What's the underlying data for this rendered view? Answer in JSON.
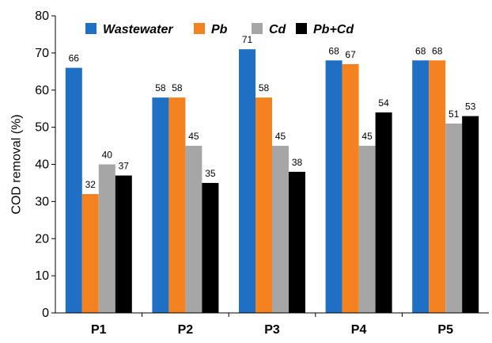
{
  "chart_data": {
    "type": "bar",
    "categories": [
      "P1",
      "P2",
      "P3",
      "P4",
      "P5"
    ],
    "series": [
      {
        "name": "Wastewater",
        "color": "#1f6fc5",
        "values": [
          66,
          58,
          71,
          68,
          68
        ]
      },
      {
        "name": "Pb",
        "color": "#f58220",
        "values": [
          32,
          58,
          58,
          67,
          68
        ]
      },
      {
        "name": "Cd",
        "color": "#a6a6a6",
        "values": [
          40,
          45,
          45,
          45,
          51
        ]
      },
      {
        "name": "Pb+Cd",
        "color": "#000000",
        "values": [
          37,
          35,
          38,
          54,
          53
        ]
      }
    ],
    "data_labels": [
      [
        "66",
        "32",
        "40",
        "37"
      ],
      [
        "58",
        "58",
        "45",
        "35"
      ],
      [
        "71",
        "58",
        "45",
        "38"
      ],
      [
        "68",
        "67",
        "45",
        "54"
      ],
      [
        "68",
        "68",
        "51",
        "53"
      ]
    ],
    "ylabel": "COD removal (%)",
    "xlabel": "",
    "ylim": [
      0,
      80
    ],
    "yticks": [
      0,
      10,
      20,
      30,
      40,
      50,
      60,
      70,
      80
    ],
    "grid": false,
    "legend_position": "top"
  }
}
